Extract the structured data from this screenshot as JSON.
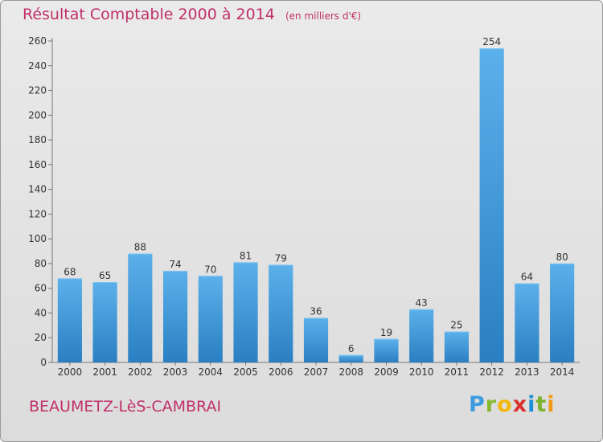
{
  "title": "Résultat Comptable 2000 à 2014",
  "unit_note": "(en milliers d'€)",
  "commune": "BEAUMETZ-LèS-CAMBRAI",
  "logo_text": "Proxiti",
  "colors": {
    "title": "#c0306a",
    "bar_light": "#5cb0ea",
    "bar_dark": "#2a7fc2",
    "background": "#e2e2e2"
  },
  "chart_data": {
    "type": "bar",
    "categories": [
      "2000",
      "2001",
      "2002",
      "2003",
      "2004",
      "2005",
      "2006",
      "2007",
      "2008",
      "2009",
      "2010",
      "2011",
      "2012",
      "2013",
      "2014"
    ],
    "values": [
      68,
      65,
      88,
      74,
      70,
      81,
      79,
      36,
      6,
      19,
      43,
      25,
      254,
      64,
      80
    ],
    "title": "Résultat Comptable 2000 à 2014",
    "subtitle": "(en milliers d'€)",
    "xlabel": "",
    "ylabel": "",
    "ylim": [
      0,
      260
    ],
    "yticks": [
      0,
      20,
      40,
      60,
      80,
      100,
      120,
      140,
      160,
      180,
      200,
      220,
      240,
      260
    ],
    "grid": false,
    "legend": "none",
    "data_labels": true
  }
}
